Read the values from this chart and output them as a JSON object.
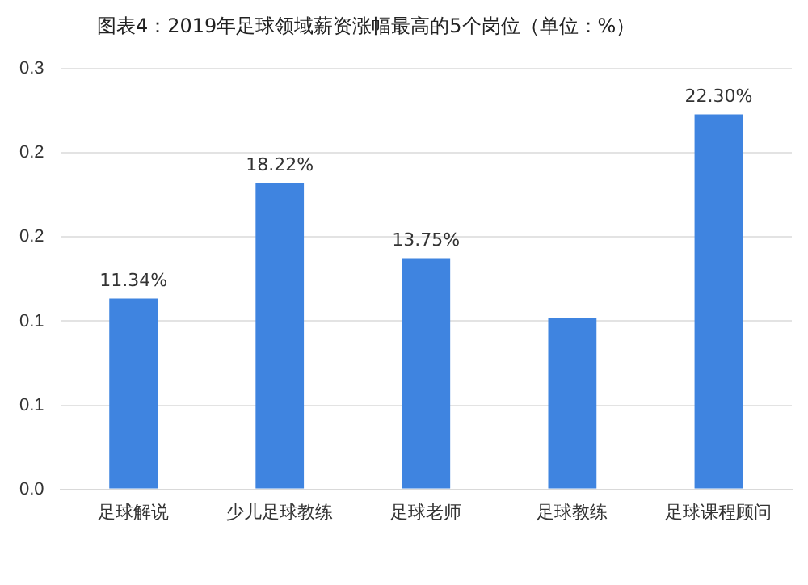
{
  "chart_data": {
    "type": "bar",
    "title": "图表4：2019年足球领域薪资涨幅最高的5个岗位（单位：%）",
    "categories": [
      "足球解说",
      "少儿足球教练",
      "足球老师",
      "足球教练",
      "足球课程顾问"
    ],
    "values": [
      0.1134,
      0.1822,
      0.1375,
      0.102,
      0.223
    ],
    "value_labels": [
      "11.34%",
      "18.22%",
      "13.75%",
      null,
      "22.30%"
    ],
    "color": "#3f84e0",
    "ylim": [
      0,
      0.25
    ],
    "yticks": [
      {
        "value": 0,
        "label": "0.0"
      },
      {
        "value": 0.05,
        "label": "0.1"
      },
      {
        "value": 0.1,
        "label": "0.1"
      },
      {
        "value": 0.15,
        "label": "0.2"
      },
      {
        "value": 0.2,
        "label": "0.2"
      },
      {
        "value": 0.25,
        "label": "0.3"
      }
    ],
    "grid": "y",
    "legend": false
  }
}
